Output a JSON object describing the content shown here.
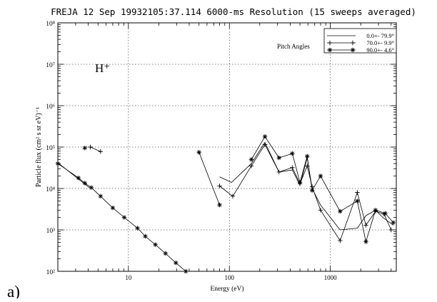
{
  "panel_label": "a)",
  "chart_data": {
    "type": "line",
    "title": "FREJA  12 Sep 19932105:37.114 6000-ms Resolution (15 sweeps averaged)",
    "xlabel": "Energy (eV)",
    "ylabel": "Particle flux (cm² s sr eV)⁻¹",
    "x_scale": "log",
    "y_scale": "log",
    "xlim": [
      2,
      4500
    ],
    "ylim": [
      100,
      100000000
    ],
    "x_ticks": [
      10,
      100,
      1000
    ],
    "x_tick_labels": [
      "10",
      "100",
      "1000"
    ],
    "y_ticks": [
      100,
      1000,
      10000,
      100000,
      1000000,
      10000000,
      100000000
    ],
    "y_tick_labels": [
      "10²",
      "10³",
      "10⁴",
      "10⁵",
      "10⁶",
      "10⁷",
      "10⁸"
    ],
    "species_label": "H⁺",
    "legend": {
      "title": "Pitch Angles",
      "placement": "top-right",
      "entries": [
        "0.0+- 79.9°",
        "70.0+- 9.9°",
        "90.0+- 4.6°"
      ]
    },
    "series": [
      {
        "name": "0.0+- 79.9°",
        "marker": "none",
        "segments": [
          [
            [
              2.0,
              42000
            ],
            [
              4.1,
              10500
            ]
          ],
          [
            [
              80,
              19000
            ],
            [
              105,
              14000
            ],
            [
              165,
              40000
            ],
            [
              225,
              130000
            ],
            [
              310,
              25000
            ],
            [
              420,
              28000
            ],
            [
              500,
              12000
            ],
            [
              590,
              55000
            ],
            [
              660,
              10000
            ],
            [
              800,
              4000
            ],
            [
              1250,
              1000
            ],
            [
              1850,
              1100
            ],
            [
              2250,
              2200
            ],
            [
              2800,
              3000
            ],
            [
              3300,
              2000
            ],
            [
              4200,
              1300
            ]
          ]
        ]
      },
      {
        "name": "70.0+- 9.9°",
        "marker": "plus",
        "segments": [
          [
            [
              4.2,
              100000
            ],
            [
              5.3,
              78000
            ]
          ],
          [
            [
              80,
              11500
            ],
            [
              108,
              6500
            ],
            [
              165,
              35000
            ],
            [
              225,
              115000
            ],
            [
              310,
              25000
            ],
            [
              420,
              32000
            ],
            [
              500,
              13000
            ],
            [
              590,
              35000
            ],
            [
              660,
              11000
            ],
            [
              800,
              3000
            ],
            [
              1250,
              550
            ],
            [
              1850,
              8000
            ],
            [
              2250,
              1300
            ],
            [
              2800,
              2800
            ],
            [
              3400,
              2400
            ],
            [
              4000,
              1000
            ]
          ]
        ]
      },
      {
        "name": "90.0+- 4.6°",
        "marker": "asterisk",
        "segments": [
          [
            [
              3.7,
              95000
            ]
          ],
          [
            [
              2.0,
              40000
            ],
            [
              3.2,
              18000
            ],
            [
              3.7,
              13500
            ],
            [
              4.3,
              10500
            ],
            [
              5.3,
              6500
            ],
            [
              7.0,
              3400
            ],
            [
              9.1,
              2000
            ],
            [
              12.3,
              1100
            ],
            [
              14.7,
              700
            ],
            [
              18.5,
              440
            ],
            [
              23.3,
              270
            ],
            [
              29.5,
              160
            ],
            [
              37,
              100
            ]
          ],
          [
            [
              50,
              75000
            ],
            [
              80,
              4000
            ]
          ],
          [
            [
              165,
              50000
            ],
            [
              225,
              180000
            ],
            [
              310,
              55000
            ],
            [
              420,
              70000
            ],
            [
              500,
              14000
            ],
            [
              590,
              60000
            ],
            [
              660,
              9000
            ],
            [
              800,
              20000
            ],
            [
              1250,
              2800
            ],
            [
              1850,
              5000
            ],
            [
              2250,
              520
            ],
            [
              2800,
              3000
            ],
            [
              3500,
              2500
            ],
            [
              4200,
              1500
            ]
          ]
        ]
      }
    ]
  }
}
